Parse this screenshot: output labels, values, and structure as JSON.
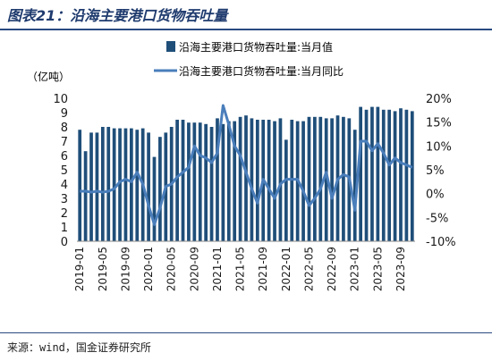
{
  "header": {
    "title": "图表21：沿海主要港口货物吞吐量"
  },
  "footer": {
    "source": "来源：wind，国金证券研究所"
  },
  "colors": {
    "bar": "#1f4e79",
    "line": "#4a7ebb",
    "text": "#1a1a1a",
    "title": "#1f3b6e"
  },
  "chart_data": {
    "type": "bar+line",
    "unit_label": "（亿吨）",
    "legend": {
      "placement": "top-center",
      "entries": [
        "沿海主要港口货物吞吐量:当月值",
        "沿海主要港口货物吞吐量:当月同比"
      ]
    },
    "x": [
      "2019-01",
      "2019-02",
      "2019-03",
      "2019-04",
      "2019-05",
      "2019-06",
      "2019-07",
      "2019-08",
      "2019-09",
      "2019-10",
      "2019-11",
      "2019-12",
      "2020-01",
      "2020-02",
      "2020-03",
      "2020-04",
      "2020-05",
      "2020-06",
      "2020-07",
      "2020-08",
      "2020-09",
      "2020-10",
      "2020-11",
      "2020-12",
      "2021-01",
      "2021-02",
      "2021-03",
      "2021-04",
      "2021-05",
      "2021-06",
      "2021-07",
      "2021-08",
      "2021-09",
      "2021-10",
      "2021-11",
      "2021-12",
      "2022-01",
      "2022-02",
      "2022-03",
      "2022-04",
      "2022-05",
      "2022-06",
      "2022-07",
      "2022-08",
      "2022-09",
      "2022-10",
      "2022-11",
      "2022-12",
      "2023-01",
      "2023-02",
      "2023-03",
      "2023-04",
      "2023-05",
      "2023-06",
      "2023-07",
      "2023-08",
      "2023-09",
      "2023-10",
      "2023-11"
    ],
    "x_tick_labels": [
      "2019-01",
      "2019-05",
      "2019-09",
      "2020-01",
      "2020-05",
      "2020-09",
      "2021-01",
      "2021-05",
      "2021-09",
      "2022-01",
      "2022-05",
      "2022-09",
      "2023-01",
      "2023-05",
      "2023-09"
    ],
    "series": [
      {
        "name": "沿海主要港口货物吞吐量:当月值",
        "type": "bar",
        "axis": "left",
        "values": [
          7.8,
          6.3,
          7.6,
          7.6,
          8.0,
          8.0,
          7.9,
          7.9,
          7.9,
          7.9,
          7.8,
          7.9,
          7.6,
          5.9,
          7.3,
          7.6,
          8.0,
          8.5,
          8.5,
          8.3,
          8.3,
          8.3,
          8.2,
          8.0,
          8.6,
          8.2,
          8.4,
          8.4,
          8.7,
          8.8,
          8.6,
          8.5,
          8.5,
          8.5,
          8.4,
          8.6,
          7.1,
          8.5,
          8.4,
          8.4,
          8.7,
          8.7,
          8.7,
          8.6,
          8.6,
          8.8,
          8.7,
          8.6,
          7.8,
          9.4,
          9.2,
          9.4,
          9.4,
          9.2,
          9.2,
          9.1,
          9.3,
          9.2,
          9.1
        ]
      },
      {
        "name": "沿海主要港口货物吞吐量:当月同比",
        "type": "line",
        "axis": "right",
        "values": [
          0.5,
          0.5,
          0.3,
          0.5,
          0.3,
          0.5,
          1.0,
          2.5,
          3.0,
          2.5,
          4.5,
          2.0,
          -2.5,
          -6.5,
          -3.0,
          1.5,
          2.0,
          3.5,
          4.5,
          5.5,
          10.0,
          8.0,
          7.5,
          6.5,
          8.5,
          18.5,
          14.5,
          10.0,
          8.0,
          4.5,
          1.0,
          -2.0,
          3.0,
          1.0,
          -1.0,
          2.0,
          3.0,
          3.0,
          3.0,
          0.5,
          -2.5,
          -1.0,
          1.0,
          4.5,
          -1.0,
          3.0,
          4.0,
          3.5,
          -3.5,
          11.0,
          11.0,
          9.0,
          10.5,
          8.5,
          6.0,
          7.5,
          6.5,
          6.0,
          5.5
        ]
      }
    ],
    "y_left": {
      "ylim": [
        0,
        10
      ],
      "ticks": [
        "0",
        "1",
        "2",
        "3",
        "4",
        "5",
        "6",
        "7",
        "8",
        "9",
        "10"
      ]
    },
    "y_right": {
      "ylim": [
        -10,
        20
      ],
      "ticks": [
        "-10%",
        "-5%",
        "0%",
        "5%",
        "10%",
        "15%",
        "20%"
      ]
    }
  }
}
